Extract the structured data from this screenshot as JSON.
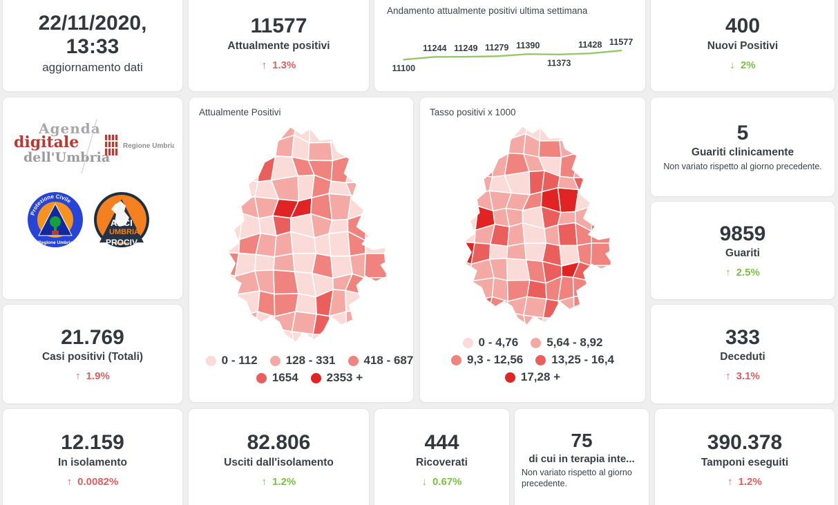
{
  "colors": {
    "accent_red": "#e0605f",
    "accent_green": "#7cc144",
    "number_dark": "#33383e",
    "page_bg": "#f0efef"
  },
  "cards": {
    "updated": {
      "value": "22/11/2020, 13:33",
      "label": "aggiornamento dati"
    },
    "attualmente": {
      "value": "11577",
      "label": "Attualmente positivi",
      "arrow": "↑",
      "delta": "1.3%"
    },
    "nuovi": {
      "value": "400",
      "label": "Nuovi Positivi",
      "arrow": "↓",
      "delta": "2%"
    },
    "guariti_clinicamente": {
      "value": "5",
      "label": "Guariti clinicamente",
      "note": "Non variato rispetto al giorno precedente."
    },
    "guariti": {
      "value": "9859",
      "label": "Guariti",
      "arrow": "↑",
      "delta": "2.5%"
    },
    "deceduti": {
      "value": "333",
      "label": "Deceduti",
      "arrow": "↑",
      "delta": "3.1%"
    },
    "casi_totali": {
      "value": "21.769",
      "label": "Casi positivi (Totali)",
      "arrow": "↑",
      "delta": "1.9%"
    },
    "isolamento": {
      "value": "12.159",
      "label": "In isolamento",
      "arrow": "↑",
      "delta": "0.0082%"
    },
    "usciti": {
      "value": "82.806",
      "label": "Usciti dall'isolamento",
      "arrow": "↑",
      "delta": "1.2%"
    },
    "ricoverati": {
      "value": "444",
      "label": "Ricoverati",
      "arrow": "↓",
      "delta": "0.67%"
    },
    "terapia": {
      "value": "75",
      "label": "di cui in terapia inte...",
      "note": "Non variato rispetto al giorno precedente."
    },
    "tamponi": {
      "value": "390.378",
      "label": "Tamponi eseguiti",
      "arrow": "↑",
      "delta": "1.2%"
    },
    "map_attualmente": {
      "title": "Attualmente Positivi",
      "legend": [
        {
          "label": "0 - 112",
          "color": "#fadbd8"
        },
        {
          "label": "128 - 331",
          "color": "#f5a9a4"
        },
        {
          "label": "418 - 687",
          "color": "#f0837d"
        },
        {
          "label": "1654",
          "color": "#ea5f5b"
        },
        {
          "label": "2353 +",
          "color": "#e12423"
        }
      ]
    },
    "map_tasso": {
      "title": "Tasso positivi x 1000",
      "legend": [
        {
          "label": "0 - 4,76",
          "color": "#fadbd8"
        },
        {
          "label": "5,64 - 8,92",
          "color": "#f5a9a4"
        },
        {
          "label": "9,3 - 12,56",
          "color": "#f0837d"
        },
        {
          "label": "13,25 - 16,4",
          "color": "#ea5f5b"
        },
        {
          "label": "17,28 +",
          "color": "#e12423"
        }
      ]
    }
  },
  "chart_data": {
    "type": "line",
    "title": "Andamento attualmente positivi ultima settimana",
    "values": [
      11100,
      11244,
      11249,
      11279,
      11390,
      11373,
      11428,
      11577
    ],
    "label_positions": [
      "below",
      "above",
      "above",
      "above",
      "above",
      "below",
      "above",
      "above"
    ],
    "line_color": "#98c767",
    "grid": false,
    "legend": "none"
  },
  "logos": {
    "agenda_line1": "Agenda",
    "agenda_line2": "digitale",
    "agenda_line3": "dell'Umbria",
    "regione": "Regione Umbria",
    "pc_top": "Protezione Civile",
    "pc_bottom": "Regione Umbria",
    "anci_1": "ANCI",
    "anci_2": "UMBRIA",
    "anci_3": "PROCIV"
  },
  "map_render": {
    "palette": [
      "#fadbd8",
      "#f5a9a4",
      "#f0837d",
      "#ea5f5b",
      "#e12423"
    ],
    "geometry_seed": 42,
    "maps": [
      {
        "svg": "map-svg-attualmente",
        "color_seed": 7,
        "weights": [
          0.62,
          0.25,
          0.1,
          0.03,
          0
        ],
        "hotspots": [
          [
            113,
            118,
            20,
            4
          ],
          [
            98,
            140,
            10,
            3
          ],
          [
            176,
            69,
            26,
            2
          ],
          [
            206,
            158,
            20,
            2
          ],
          [
            165,
            198,
            16,
            2
          ],
          [
            158,
            250,
            13,
            3
          ],
          [
            60,
            120,
            18,
            1
          ],
          [
            136,
            281,
            14,
            1
          ],
          [
            150,
            40,
            16,
            1
          ]
        ]
      },
      {
        "svg": "map-svg-tasso",
        "color_seed": 13,
        "weights": [
          0.15,
          0.3,
          0.3,
          0.22,
          0.03
        ],
        "hotspots": [
          [
            170,
            127,
            18,
            4
          ],
          [
            129,
            56,
            7,
            4
          ],
          [
            59,
            149,
            6,
            4
          ],
          [
            187,
            226,
            8,
            4
          ],
          [
            150,
            142,
            16,
            3
          ],
          [
            140,
            90,
            22,
            3
          ],
          [
            225,
            185,
            30,
            2
          ],
          [
            55,
            95,
            22,
            1
          ],
          [
            70,
            240,
            25,
            1
          ],
          [
            120,
            290,
            20,
            1
          ]
        ]
      }
    ]
  }
}
